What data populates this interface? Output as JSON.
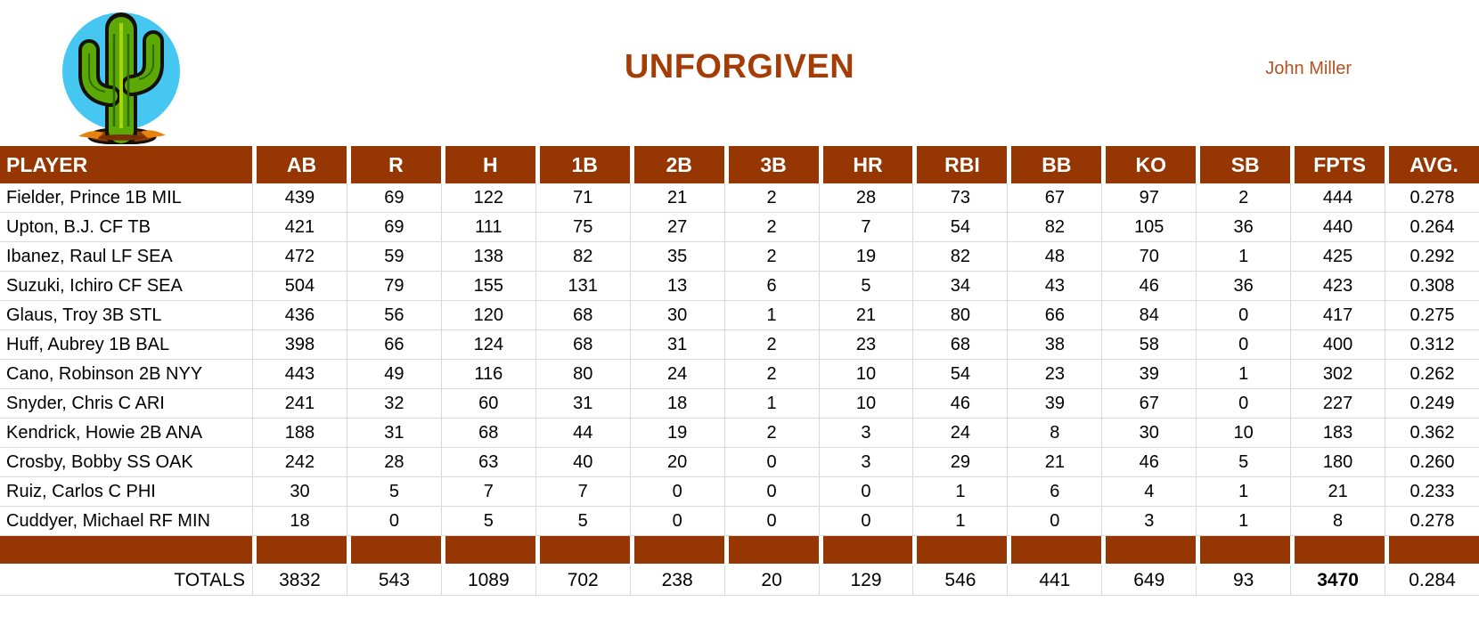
{
  "header": {
    "team_name": "UNFORGIVEN",
    "owner": "John Miller",
    "logo": "cactus-logo"
  },
  "colors": {
    "accent_brown": "#963703",
    "title_rust": "#A63C05",
    "owner_rust": "#B1531F",
    "gridline": "#D9D9D9",
    "logo_sky_blue": "#45C7F2",
    "logo_green": "#5CA906",
    "logo_dirt_brown": "#8C3B0C"
  },
  "table": {
    "columns": [
      "PLAYER",
      "AB",
      "R",
      "H",
      "1B",
      "2B",
      "3B",
      "HR",
      "RBI",
      "BB",
      "KO",
      "SB",
      "FPTS",
      "AVG."
    ],
    "players": [
      {
        "name": "Fielder, Prince 1B MIL",
        "stats": [
          "439",
          "69",
          "122",
          "71",
          "21",
          "2",
          "28",
          "73",
          "67",
          "97",
          "2",
          "444",
          "0.278"
        ]
      },
      {
        "name": "Upton, B.J. CF TB",
        "stats": [
          "421",
          "69",
          "111",
          "75",
          "27",
          "2",
          "7",
          "54",
          "82",
          "105",
          "36",
          "440",
          "0.264"
        ]
      },
      {
        "name": "Ibanez, Raul LF SEA",
        "stats": [
          "472",
          "59",
          "138",
          "82",
          "35",
          "2",
          "19",
          "82",
          "48",
          "70",
          "1",
          "425",
          "0.292"
        ]
      },
      {
        "name": "Suzuki, Ichiro CF SEA",
        "stats": [
          "504",
          "79",
          "155",
          "131",
          "13",
          "6",
          "5",
          "34",
          "43",
          "46",
          "36",
          "423",
          "0.308"
        ]
      },
      {
        "name": "Glaus, Troy 3B STL",
        "stats": [
          "436",
          "56",
          "120",
          "68",
          "30",
          "1",
          "21",
          "80",
          "66",
          "84",
          "0",
          "417",
          "0.275"
        ]
      },
      {
        "name": "Huff, Aubrey 1B BAL",
        "stats": [
          "398",
          "66",
          "124",
          "68",
          "31",
          "2",
          "23",
          "68",
          "38",
          "58",
          "0",
          "400",
          "0.312"
        ]
      },
      {
        "name": "Cano, Robinson 2B NYY",
        "stats": [
          "443",
          "49",
          "116",
          "80",
          "24",
          "2",
          "10",
          "54",
          "23",
          "39",
          "1",
          "302",
          "0.262"
        ]
      },
      {
        "name": "Snyder, Chris C ARI",
        "stats": [
          "241",
          "32",
          "60",
          "31",
          "18",
          "1",
          "10",
          "46",
          "39",
          "67",
          "0",
          "227",
          "0.249"
        ]
      },
      {
        "name": "Kendrick, Howie 2B ANA",
        "stats": [
          "188",
          "31",
          "68",
          "44",
          "19",
          "2",
          "3",
          "24",
          "8",
          "30",
          "10",
          "183",
          "0.362"
        ]
      },
      {
        "name": "Crosby, Bobby SS OAK",
        "stats": [
          "242",
          "28",
          "63",
          "40",
          "20",
          "0",
          "3",
          "29",
          "21",
          "46",
          "5",
          "180",
          "0.260"
        ]
      },
      {
        "name": "Ruiz, Carlos C PHI",
        "stats": [
          "30",
          "5",
          "7",
          "7",
          "0",
          "0",
          "0",
          "1",
          "6",
          "4",
          "1",
          "21",
          "0.233"
        ]
      },
      {
        "name": "Cuddyer, Michael RF MIN",
        "stats": [
          "18",
          "0",
          "5",
          "5",
          "0",
          "0",
          "0",
          "1",
          "0",
          "3",
          "1",
          "8",
          "0.278"
        ]
      }
    ],
    "totals": {
      "label": "TOTALS",
      "stats": [
        "3832",
        "543",
        "1089",
        "702",
        "238",
        "20",
        "129",
        "546",
        "441",
        "649",
        "93",
        "3470",
        "0.284"
      ],
      "bold_stat_index": 11
    }
  }
}
